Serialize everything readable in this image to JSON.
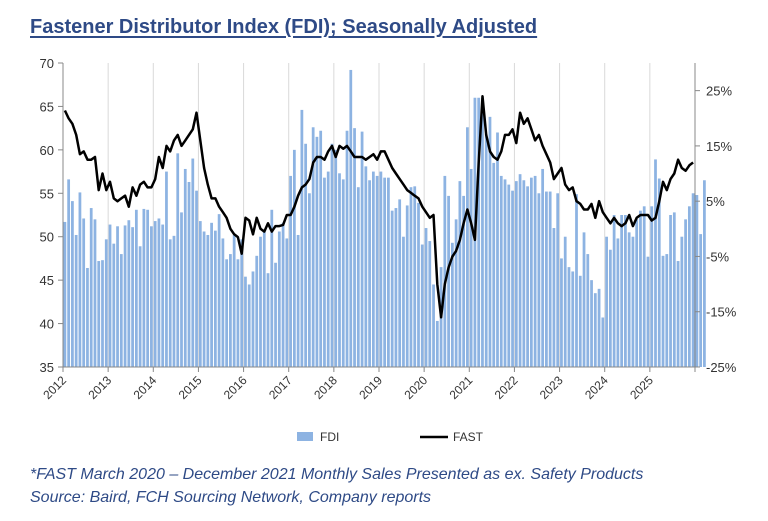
{
  "title": "Fastener Distributor Index (FDI); Seasonally Adjusted",
  "footnotes": [
    "*FAST March 2020 – December 2021 Monthly Sales Presented as ex. Safety Products",
    "Source: Baird, FCH Sourcing Network, Company reports"
  ],
  "chart_data": {
    "type": "bar+line",
    "x_tick_labels": [
      "2012",
      "2013",
      "2014",
      "2015",
      "2016",
      "2017",
      "2018",
      "2019",
      "2020",
      "2021",
      "2022",
      "2023",
      "2024",
      "2025"
    ],
    "frequency": "monthly",
    "y_left": {
      "ylim": [
        35,
        70
      ],
      "ticks": [
        "35",
        "40",
        "45",
        "50",
        "55",
        "60",
        "65",
        "70"
      ]
    },
    "y_right": {
      "ylim": [
        -25,
        30
      ],
      "ticks": [
        "-25%",
        "-15%",
        "-5%",
        "5%",
        "15%",
        "25%"
      ]
    },
    "grid": "vertical at years",
    "legend": "bottom",
    "colors": {
      "FDI": "#8db3e2",
      "FAST": "#000000"
    },
    "series": [
      {
        "name": "FDI",
        "type": "bar",
        "axis": "left",
        "values": [
          51.7,
          56.6,
          54.1,
          50.2,
          55.1,
          52.1,
          46.4,
          53.3,
          52.0,
          47.2,
          47.3,
          49.7,
          51.4,
          49.2,
          51.2,
          48.0,
          51.3,
          51.9,
          51.1,
          53.1,
          48.9,
          53.2,
          53.1,
          51.2,
          51.8,
          52.1,
          51.4,
          57.5,
          49.7,
          50.1,
          59.6,
          52.8,
          57.8,
          56.3,
          59.0,
          55.3,
          51.8,
          50.6,
          50.2,
          51.6,
          50.7,
          52.6,
          49.8,
          47.4,
          48.0,
          50.2,
          47.4,
          49.7,
          45.4,
          44.5,
          46.0,
          47.8,
          50.0,
          50.6,
          45.8,
          53.1,
          47.0,
          50.6,
          51.6,
          49.8,
          57.0,
          60.0,
          50.2,
          64.6,
          60.7,
          55.0,
          62.6,
          61.5,
          62.2,
          56.8,
          57.5,
          60.7,
          60.0,
          57.3,
          56.6,
          62.2,
          69.2,
          62.5,
          55.7,
          62.1,
          58.1,
          56.5,
          57.5,
          57.0,
          57.5,
          56.8,
          56.8,
          53.0,
          53.3,
          54.3,
          50.0,
          53.6,
          55.7,
          55.8,
          53.9,
          49.1,
          51.0,
          49.5,
          44.5,
          40.3,
          46.5,
          57.0,
          54.7,
          49.3,
          52.0,
          56.4,
          54.7,
          62.6,
          57.8,
          66.0,
          66.0,
          66.0,
          61.8,
          63.8,
          58.5,
          62.0,
          57.0,
          56.6,
          56.0,
          55.3,
          56.4,
          57.2,
          56.5,
          55.8,
          56.8,
          57.0,
          55.0,
          57.8,
          55.2,
          55.2,
          51.0,
          55.0,
          47.5,
          50.0,
          46.5,
          46.0,
          54.9,
          45.5,
          50.5,
          48.0,
          45.0,
          43.5,
          44.0,
          40.7,
          50.0,
          48.5,
          52.5,
          49.8,
          52.5,
          52.5,
          50.5,
          50.0,
          52.0,
          53.0,
          53.5,
          47.7,
          53.5,
          58.9,
          56.7,
          47.8,
          48.0,
          52.5,
          52.8,
          47.2,
          50.0,
          52.0,
          53.5,
          55.0,
          54.8,
          50.3,
          56.5
        ]
      },
      {
        "name": "FAST",
        "type": "line",
        "axis": "right",
        "unit": "%",
        "values": [
          21.4,
          20,
          19,
          17,
          13.5,
          14,
          12.5,
          12.5,
          13,
          7,
          10,
          7,
          8.5,
          5.5,
          5,
          5.5,
          6,
          4,
          7.5,
          6,
          8,
          8.5,
          7.5,
          7.5,
          9,
          13,
          11,
          15,
          14,
          16,
          17,
          15,
          16,
          17,
          18,
          21,
          16,
          11,
          8,
          5.5,
          5.5,
          4,
          3,
          2,
          0,
          -1,
          -1.5,
          -4.5,
          2,
          1.5,
          -1,
          2,
          0,
          -0.5,
          1,
          -0.5,
          0.5,
          0.5,
          0.7,
          2.5,
          2.5,
          4,
          6,
          7.5,
          8,
          9,
          12,
          13,
          13,
          12.5,
          14,
          15,
          13,
          15,
          14.5,
          15,
          14,
          13,
          13,
          13,
          12.5,
          13,
          13.5,
          12.5,
          14,
          14,
          12.5,
          11,
          10,
          9,
          8,
          7,
          6.5,
          6,
          5.5,
          4,
          3,
          2,
          2.5,
          -10,
          -16,
          -10,
          -7,
          -5,
          -4,
          -2,
          1,
          3.5,
          1,
          -2,
          12,
          24,
          17,
          14,
          13,
          12.5,
          14,
          17,
          17,
          18,
          15.5,
          21,
          19,
          20,
          18,
          16,
          17,
          15,
          13.5,
          12,
          9,
          10,
          11,
          8,
          7,
          7.5,
          5,
          4.5,
          3.5,
          3.5,
          4.5,
          2,
          5,
          3,
          2,
          1,
          2,
          1,
          0.5,
          1,
          2.5,
          0.5,
          2,
          2.5,
          2.5,
          2.5,
          1.5,
          2,
          5,
          8.5,
          7,
          9,
          10,
          12.5,
          11,
          10.5,
          11.5,
          12
        ]
      }
    ]
  }
}
